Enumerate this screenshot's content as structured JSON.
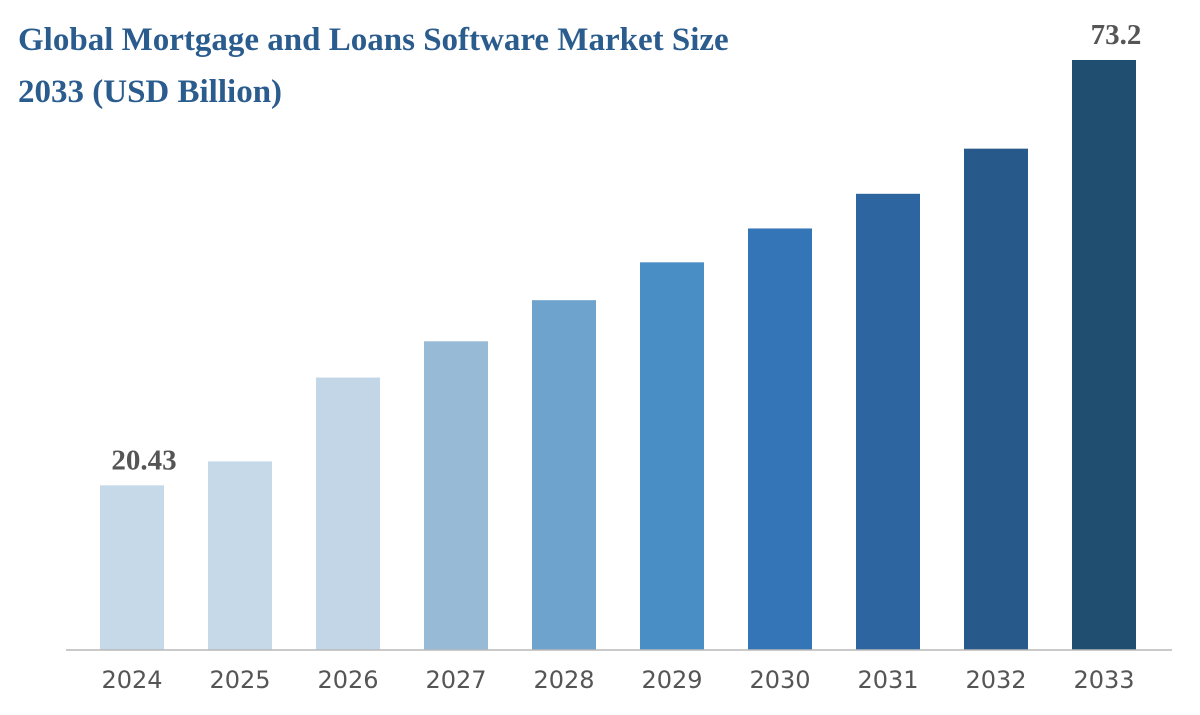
{
  "chart_data": {
    "type": "bar",
    "title_line1": "Global Mortgage and Loans Software Market Size",
    "title_line2": "2033 (USD Billion)",
    "categories": [
      "2024",
      "2025",
      "2026",
      "2027",
      "2028",
      "2029",
      "2030",
      "2031",
      "2032",
      "2033"
    ],
    "values": [
      20.43,
      23.4,
      33.8,
      38.3,
      43.4,
      48.1,
      52.3,
      56.6,
      62.2,
      73.2
    ],
    "data_labels": [
      {
        "category": "2024",
        "text": "20.43"
      },
      {
        "category": "2033",
        "text": "73.2"
      }
    ],
    "bar_colors": [
      "#c6d9e9",
      "#c6d9e9",
      "#c2d6e7",
      "#97bbd7",
      "#6da3cc",
      "#4a8ec6",
      "#3475b8",
      "#2c65a0",
      "#27598a",
      "#1f4e70"
    ],
    "ylim": [
      0,
      75
    ],
    "grid": false,
    "legend": "none",
    "xlabel": "",
    "ylabel": ""
  }
}
